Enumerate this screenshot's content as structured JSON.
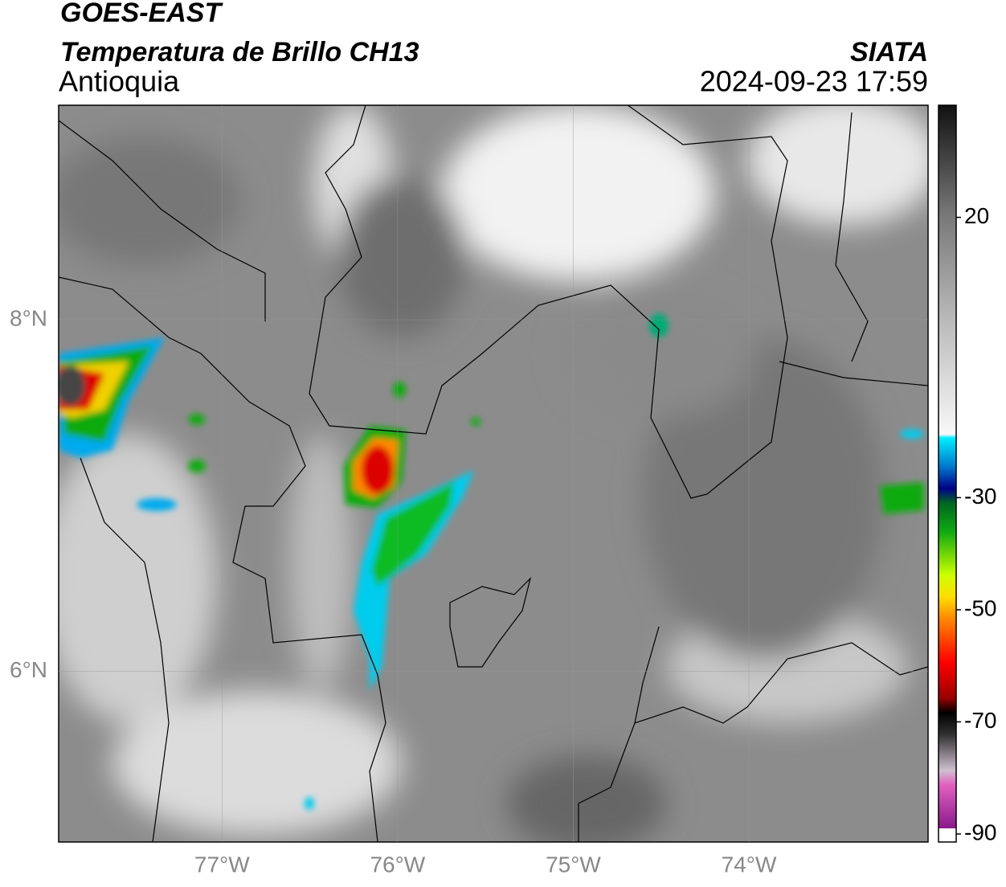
{
  "header": {
    "title": "GOES-EAST",
    "subtitle": "Temperatura de Brillo CH13",
    "region": "Antioquia",
    "agency": "SIATA",
    "timestamp": "2024-09-23 17:59"
  },
  "map": {
    "xlim": [
      -77.93,
      -72.98
    ],
    "ylim": [
      5.03,
      9.22
    ],
    "xticks": [
      {
        "value": -77,
        "label": "77°W"
      },
      {
        "value": -76,
        "label": "76°W"
      },
      {
        "value": -75,
        "label": "75°W"
      },
      {
        "value": -74,
        "label": "74°W"
      }
    ],
    "yticks": [
      {
        "value": 6,
        "label": "6°N"
      },
      {
        "value": 8,
        "label": "8°N"
      }
    ]
  },
  "colorbar": {
    "lim": [
      -90,
      40
    ],
    "ticks": [
      20,
      -30,
      -50,
      -70,
      -90
    ]
  }
}
